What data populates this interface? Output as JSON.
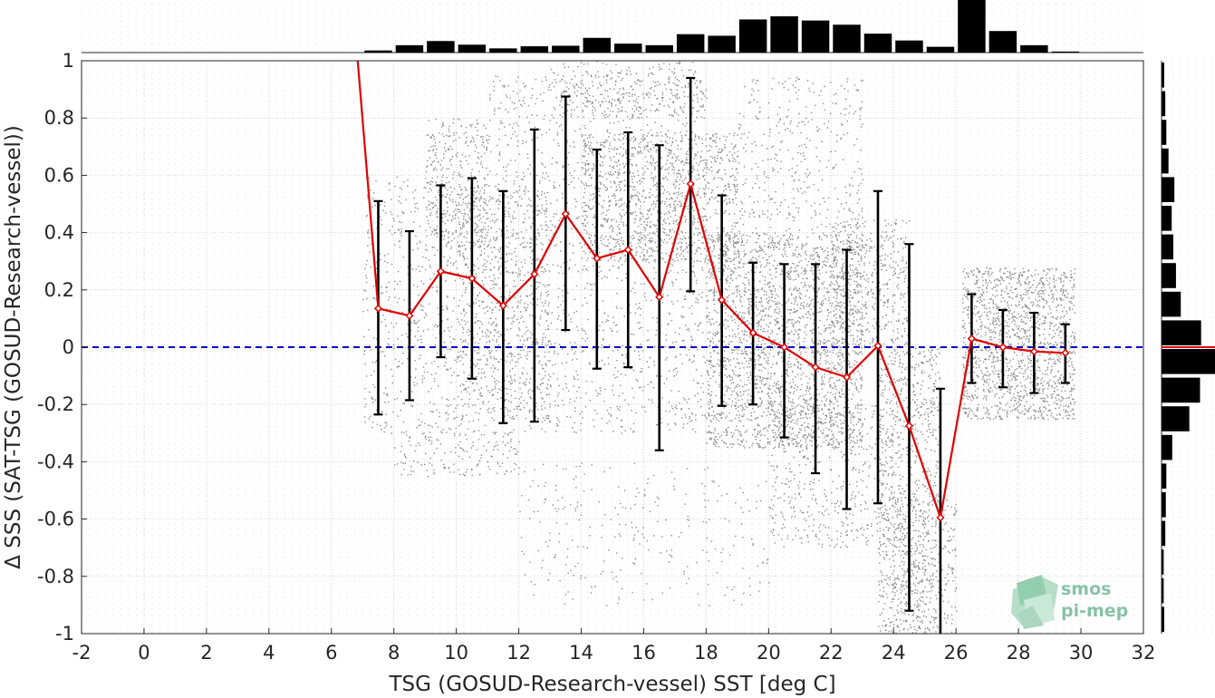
{
  "chart_data": {
    "type": "scatter",
    "xlabel": "TSG (GOSUD-Research-vessel) SST [deg C]",
    "ylabel": "Δ SSS (SAT-TSG (GOSUD-Research-vessel))",
    "xlim": [
      -2,
      32
    ],
    "ylim": [
      -1,
      1
    ],
    "xticks": [
      -2,
      0,
      2,
      4,
      6,
      8,
      10,
      12,
      14,
      16,
      18,
      20,
      22,
      24,
      26,
      28,
      30,
      32
    ],
    "yticks": [
      -1,
      -0.8,
      -0.6,
      -0.4,
      -0.2,
      0,
      0.2,
      0.4,
      0.6,
      0.8,
      1
    ],
    "grid": true,
    "zero_line": 0,
    "colors": {
      "scatter": "#8c8c8c",
      "mean_line": "#e00000",
      "error_bars": "#000000",
      "zero_line": "#0000c8",
      "histogram": "#000000"
    },
    "binned_stats": {
      "x": [
        6.5,
        7.5,
        8.5,
        9.5,
        10.5,
        11.5,
        12.5,
        13.5,
        14.5,
        15.5,
        16.5,
        17.5,
        18.5,
        19.5,
        20.5,
        21.5,
        22.5,
        23.5,
        24.5,
        25.5,
        26.5,
        27.5,
        28.5,
        29.5
      ],
      "mean": [
        1.45,
        0.135,
        0.11,
        0.265,
        0.24,
        0.145,
        0.255,
        0.465,
        0.31,
        0.34,
        0.175,
        0.57,
        0.165,
        0.05,
        0.0,
        -0.07,
        -0.105,
        0.005,
        -0.275,
        -0.595,
        0.03,
        0.0,
        -0.015,
        -0.02
      ],
      "upper": [
        null,
        0.51,
        0.405,
        0.565,
        0.59,
        0.545,
        0.76,
        0.875,
        0.69,
        0.75,
        0.705,
        0.94,
        0.53,
        0.295,
        0.29,
        0.29,
        0.34,
        0.545,
        0.36,
        -0.145,
        0.185,
        0.13,
        0.12,
        0.08
      ],
      "lower": [
        null,
        -0.235,
        -0.185,
        -0.035,
        -0.11,
        -0.265,
        -0.26,
        0.06,
        -0.075,
        -0.07,
        -0.36,
        0.195,
        -0.205,
        -0.2,
        -0.315,
        -0.44,
        -0.565,
        -0.545,
        -0.92,
        -1.05,
        -0.125,
        -0.14,
        -0.16,
        -0.125
      ]
    },
    "top_histogram": {
      "bin_centers": [
        7.5,
        8.5,
        9.5,
        10.5,
        11.5,
        12.5,
        13.5,
        14.5,
        15.5,
        16.5,
        17.5,
        18.5,
        19.5,
        20.5,
        21.5,
        22.5,
        23.5,
        24.5,
        25.5,
        26.5,
        27.5,
        28.5,
        29.5
      ],
      "counts": [
        0.04,
        0.14,
        0.22,
        0.15,
        0.08,
        0.12,
        0.13,
        0.28,
        0.17,
        0.14,
        0.35,
        0.32,
        0.63,
        0.69,
        0.61,
        0.53,
        0.36,
        0.23,
        0.11,
        1.0,
        0.41,
        0.14,
        0.02
      ]
    },
    "right_histogram": {
      "bin_centers": [
        -0.95,
        -0.85,
        -0.75,
        -0.65,
        -0.55,
        -0.45,
        -0.35,
        -0.25,
        -0.15,
        -0.05,
        0.05,
        0.15,
        0.25,
        0.35,
        0.45,
        0.55,
        0.65,
        0.75,
        0.85,
        0.95
      ],
      "counts": [
        0.05,
        0.04,
        0.04,
        0.07,
        0.08,
        0.09,
        0.2,
        0.52,
        0.72,
        1.0,
        0.74,
        0.36,
        0.27,
        0.22,
        0.19,
        0.24,
        0.13,
        0.09,
        0.07,
        0.05
      ]
    },
    "scatter_clusters": [
      {
        "x": [
          7,
          11
        ],
        "y": [
          -0.3,
          0.6
        ],
        "n": 700
      },
      {
        "x": [
          9,
          11
        ],
        "y": [
          0.35,
          0.8
        ],
        "n": 350
      },
      {
        "x": [
          10,
          13
        ],
        "y": [
          -0.25,
          0.55
        ],
        "n": 600
      },
      {
        "x": [
          8,
          12
        ],
        "y": [
          -0.45,
          -0.3
        ],
        "n": 160
      },
      {
        "x": [
          11,
          18
        ],
        "y": [
          -0.3,
          0.95
        ],
        "n": 1600
      },
      {
        "x": [
          13,
          18
        ],
        "y": [
          0.8,
          1.0
        ],
        "n": 300
      },
      {
        "x": [
          14,
          19
        ],
        "y": [
          0.3,
          0.75
        ],
        "n": 1100
      },
      {
        "x": [
          12,
          20
        ],
        "y": [
          -0.9,
          -0.4
        ],
        "n": 280
      },
      {
        "x": [
          18,
          23
        ],
        "y": [
          -0.35,
          0.4
        ],
        "n": 2600
      },
      {
        "x": [
          19,
          23
        ],
        "y": [
          0.4,
          0.95
        ],
        "n": 380
      },
      {
        "x": [
          20,
          24
        ],
        "y": [
          -0.7,
          -0.2
        ],
        "n": 500
      },
      {
        "x": [
          22,
          24.5
        ],
        "y": [
          0.0,
          0.45
        ],
        "n": 450
      },
      {
        "x": [
          23.5,
          25.5
        ],
        "y": [
          -1.0,
          0.0
        ],
        "n": 900
      },
      {
        "x": [
          24,
          26
        ],
        "y": [
          -1.0,
          -0.5
        ],
        "n": 300
      },
      {
        "x": [
          26.2,
          29.8
        ],
        "y": [
          -0.25,
          0.28
        ],
        "n": 1500
      }
    ]
  },
  "watermark": {
    "line1": "smos",
    "line2": "pi-mep"
  }
}
